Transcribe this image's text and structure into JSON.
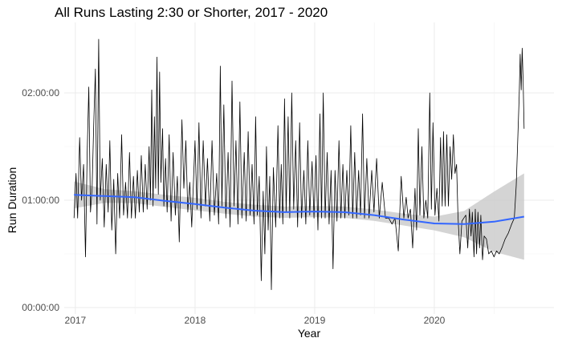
{
  "chart_data": {
    "type": "line",
    "title": "All Runs Lasting 2:30 or Shorter, 2017 - 2020",
    "xlabel": "Year",
    "ylabel": "Run Duration",
    "x_ticks": [
      "2017",
      "2018",
      "2019",
      "2020"
    ],
    "y_ticks": [
      "00:00:00",
      "01:00:00",
      "02:00:00"
    ],
    "xlim": [
      "2016-11-28",
      "2020-12-31"
    ],
    "ylim_seconds": [
      0,
      9000
    ],
    "grid": true,
    "series": [
      {
        "type": "line",
        "color": "#000000",
        "points": [
          [
            "2016-12-28",
            3000
          ],
          [
            "2017-01-03",
            4500
          ],
          [
            "2017-01-08",
            3000
          ],
          [
            "2017-01-14",
            5700
          ],
          [
            "2017-01-20",
            3600
          ],
          [
            "2017-01-26",
            4800
          ],
          [
            "2017-02-01",
            1700
          ],
          [
            "2017-02-06",
            5200
          ],
          [
            "2017-02-11",
            7400
          ],
          [
            "2017-02-16",
            3200
          ],
          [
            "2017-02-21",
            4000
          ],
          [
            "2017-02-26",
            6100
          ],
          [
            "2017-03-03",
            8000
          ],
          [
            "2017-03-08",
            2800
          ],
          [
            "2017-03-13",
            9000
          ],
          [
            "2017-03-18",
            3600
          ],
          [
            "2017-03-24",
            5000
          ],
          [
            "2017-03-30",
            2700
          ],
          [
            "2017-04-05",
            4800
          ],
          [
            "2017-04-11",
            3200
          ],
          [
            "2017-04-16",
            5600
          ],
          [
            "2017-04-22",
            2600
          ],
          [
            "2017-04-28",
            4300
          ],
          [
            "2017-05-04",
            1800
          ],
          [
            "2017-05-10",
            4500
          ],
          [
            "2017-05-16",
            3000
          ],
          [
            "2017-05-22",
            5800
          ],
          [
            "2017-05-28",
            3100
          ],
          [
            "2017-06-03",
            4200
          ],
          [
            "2017-06-09",
            3000
          ],
          [
            "2017-06-15",
            5200
          ],
          [
            "2017-06-21",
            3000
          ],
          [
            "2017-06-27",
            4400
          ],
          [
            "2017-07-03",
            3000
          ],
          [
            "2017-07-09",
            4600
          ],
          [
            "2017-07-15",
            3200
          ],
          [
            "2017-07-21",
            5100
          ],
          [
            "2017-07-27",
            3200
          ],
          [
            "2017-08-02",
            4800
          ],
          [
            "2017-08-08",
            3300
          ],
          [
            "2017-08-14",
            5400
          ],
          [
            "2017-08-18",
            3600
          ],
          [
            "2017-08-22",
            7300
          ],
          [
            "2017-08-26",
            3400
          ],
          [
            "2017-08-30",
            6400
          ],
          [
            "2017-09-03",
            4000
          ],
          [
            "2017-09-07",
            8400
          ],
          [
            "2017-09-11",
            3800
          ],
          [
            "2017-09-15",
            7900
          ],
          [
            "2017-09-19",
            4200
          ],
          [
            "2017-09-24",
            6000
          ],
          [
            "2017-09-28",
            3400
          ],
          [
            "2017-10-03",
            5000
          ],
          [
            "2017-10-08",
            3200
          ],
          [
            "2017-10-14",
            5800
          ],
          [
            "2017-10-20",
            2900
          ],
          [
            "2017-10-26",
            5200
          ],
          [
            "2017-11-02",
            3100
          ],
          [
            "2017-11-08",
            4400
          ],
          [
            "2017-11-14",
            2200
          ],
          [
            "2017-11-22",
            6300
          ],
          [
            "2017-11-28",
            4000
          ],
          [
            "2017-12-04",
            5600
          ],
          [
            "2017-12-10",
            3200
          ],
          [
            "2017-12-16",
            4200
          ],
          [
            "2017-12-22",
            2700
          ],
          [
            "2018-01-01",
            5600
          ],
          [
            "2018-01-07",
            3300
          ],
          [
            "2018-01-13",
            6200
          ],
          [
            "2018-01-19",
            3000
          ],
          [
            "2018-01-26",
            5600
          ],
          [
            "2018-02-02",
            3400
          ],
          [
            "2018-02-08",
            5000
          ],
          [
            "2018-02-15",
            2900
          ],
          [
            "2018-02-22",
            5600
          ],
          [
            "2018-03-01",
            3100
          ],
          [
            "2018-03-08",
            4500
          ],
          [
            "2018-03-14",
            2800
          ],
          [
            "2018-03-19",
            8100
          ],
          [
            "2018-03-24",
            3400
          ],
          [
            "2018-03-30",
            6800
          ],
          [
            "2018-04-05",
            3000
          ],
          [
            "2018-04-12",
            5200
          ],
          [
            "2018-04-18",
            2700
          ],
          [
            "2018-04-24",
            7600
          ],
          [
            "2018-04-30",
            3400
          ],
          [
            "2018-05-06",
            5600
          ],
          [
            "2018-05-12",
            2800
          ],
          [
            "2018-05-18",
            6900
          ],
          [
            "2018-05-24",
            3000
          ],
          [
            "2018-05-31",
            5200
          ],
          [
            "2018-06-06",
            2900
          ],
          [
            "2018-06-12",
            5900
          ],
          [
            "2018-06-18",
            3100
          ],
          [
            "2018-06-24",
            4800
          ],
          [
            "2018-06-30",
            2800
          ],
          [
            "2018-07-05",
            6400
          ],
          [
            "2018-07-10",
            3100
          ],
          [
            "2018-07-16",
            4400
          ],
          [
            "2018-07-22",
            900
          ],
          [
            "2018-07-28",
            3900
          ],
          [
            "2018-08-02",
            1800
          ],
          [
            "2018-08-07",
            5400
          ],
          [
            "2018-08-12",
            2600
          ],
          [
            "2018-08-17",
            4400
          ],
          [
            "2018-08-22",
            600
          ],
          [
            "2018-08-28",
            4700
          ],
          [
            "2018-09-04",
            2700
          ],
          [
            "2018-09-11",
            6100
          ],
          [
            "2018-09-16",
            3000
          ],
          [
            "2018-09-21",
            4800
          ],
          [
            "2018-09-26",
            2800
          ],
          [
            "2018-10-01",
            7000
          ],
          [
            "2018-10-06",
            3200
          ],
          [
            "2018-10-12",
            6400
          ],
          [
            "2018-10-17",
            3000
          ],
          [
            "2018-10-23",
            7200
          ],
          [
            "2018-10-29",
            3300
          ],
          [
            "2018-11-04",
            5600
          ],
          [
            "2018-11-10",
            2700
          ],
          [
            "2018-11-16",
            6200
          ],
          [
            "2018-11-22",
            3000
          ],
          [
            "2018-11-29",
            4600
          ],
          [
            "2018-12-05",
            2800
          ],
          [
            "2018-12-11",
            5600
          ],
          [
            "2018-12-17",
            3100
          ],
          [
            "2018-12-24",
            4900
          ],
          [
            "2018-12-30",
            3000
          ],
          [
            "2019-01-05",
            5100
          ],
          [
            "2019-01-11",
            2600
          ],
          [
            "2019-01-17",
            6500
          ],
          [
            "2019-01-22",
            3000
          ],
          [
            "2019-01-27",
            7200
          ],
          [
            "2019-02-02",
            3000
          ],
          [
            "2019-02-08",
            5200
          ],
          [
            "2019-02-14",
            2800
          ],
          [
            "2019-02-20",
            4600
          ],
          [
            "2019-02-26",
            1300
          ],
          [
            "2019-03-04",
            4600
          ],
          [
            "2019-03-10",
            2900
          ],
          [
            "2019-03-16",
            5600
          ],
          [
            "2019-03-22",
            3000
          ],
          [
            "2019-03-28",
            4800
          ],
          [
            "2019-04-03",
            3000
          ],
          [
            "2019-04-09",
            4600
          ],
          [
            "2019-04-15",
            3100
          ],
          [
            "2019-04-21",
            6100
          ],
          [
            "2019-04-27",
            3000
          ],
          [
            "2019-05-03",
            5200
          ],
          [
            "2019-05-09",
            3000
          ],
          [
            "2019-05-15",
            4600
          ],
          [
            "2019-05-21",
            3100
          ],
          [
            "2019-05-27",
            6500
          ],
          [
            "2019-06-02",
            3000
          ],
          [
            "2019-06-09",
            5000
          ],
          [
            "2019-06-16",
            3000
          ],
          [
            "2019-06-24",
            4600
          ],
          [
            "2019-07-01",
            3200
          ],
          [
            "2019-07-09",
            5000
          ],
          [
            "2019-07-17",
            3000
          ],
          [
            "2019-07-26",
            4200
          ],
          [
            "2019-08-05",
            3000
          ],
          [
            "2019-08-15",
            3000
          ],
          [
            "2019-08-25",
            2800
          ],
          [
            "2019-09-03",
            3000
          ],
          [
            "2019-09-13",
            1900
          ],
          [
            "2019-09-22",
            4400
          ],
          [
            "2019-09-30",
            3000
          ],
          [
            "2019-10-07",
            3700
          ],
          [
            "2019-10-13",
            3000
          ],
          [
            "2019-10-20",
            3300
          ],
          [
            "2019-10-27",
            2000
          ],
          [
            "2019-11-03",
            4000
          ],
          [
            "2019-11-08",
            2600
          ],
          [
            "2019-11-13",
            6000
          ],
          [
            "2019-11-18",
            3100
          ],
          [
            "2019-11-24",
            5400
          ],
          [
            "2019-11-30",
            3000
          ],
          [
            "2019-12-06",
            3600
          ],
          [
            "2019-12-12",
            3000
          ],
          [
            "2019-12-18",
            7200
          ],
          [
            "2019-12-23",
            3300
          ],
          [
            "2019-12-28",
            6200
          ],
          [
            "2020-01-03",
            3100
          ],
          [
            "2020-01-09",
            4000
          ],
          [
            "2020-01-15",
            2900
          ],
          [
            "2020-01-20",
            5700
          ],
          [
            "2020-01-25",
            3400
          ],
          [
            "2020-01-29",
            5900
          ],
          [
            "2020-02-03",
            3400
          ],
          [
            "2020-02-08",
            5800
          ],
          [
            "2020-02-13",
            3400
          ],
          [
            "2020-02-18",
            5400
          ],
          [
            "2020-02-23",
            4300
          ],
          [
            "2020-02-28",
            5800
          ],
          [
            "2020-03-04",
            4500
          ],
          [
            "2020-03-09",
            4800
          ],
          [
            "2020-03-13",
            3100
          ],
          [
            "2020-03-19",
            1800
          ],
          [
            "2020-03-25",
            2900
          ],
          [
            "2020-03-31",
            3000
          ],
          [
            "2020-04-06",
            3100
          ],
          [
            "2020-04-12",
            2000
          ],
          [
            "2020-04-17",
            3300
          ],
          [
            "2020-04-22",
            2400
          ],
          [
            "2020-04-26",
            3200
          ],
          [
            "2020-05-01",
            1700
          ],
          [
            "2020-05-05",
            3300
          ],
          [
            "2020-05-09",
            1800
          ],
          [
            "2020-05-13",
            3200
          ],
          [
            "2020-05-18",
            2000
          ],
          [
            "2020-05-22",
            3100
          ],
          [
            "2020-05-27",
            1600
          ],
          [
            "2020-06-01",
            2400
          ],
          [
            "2020-06-08",
            2300
          ],
          [
            "2020-06-15",
            1800
          ],
          [
            "2020-06-23",
            1900
          ],
          [
            "2020-07-01",
            1700
          ],
          [
            "2020-07-09",
            1900
          ],
          [
            "2020-07-17",
            1800
          ],
          [
            "2020-07-25",
            2000
          ],
          [
            "2020-08-04",
            2300
          ],
          [
            "2020-08-14",
            2500
          ],
          [
            "2020-08-24",
            2800
          ],
          [
            "2020-09-01",
            3000
          ],
          [
            "2020-09-07",
            4100
          ],
          [
            "2020-09-12",
            5800
          ],
          [
            "2020-09-16",
            7100
          ],
          [
            "2020-09-19",
            8500
          ],
          [
            "2020-09-22",
            7300
          ],
          [
            "2020-09-25",
            8700
          ],
          [
            "2020-09-28",
            7600
          ],
          [
            "2020-10-01",
            6000
          ]
        ]
      },
      {
        "type": "smooth",
        "color": "#3366ff",
        "band_color": "#cccccc",
        "points": [
          [
            "2016-12-28",
            3780
          ],
          [
            "2017-04-01",
            3740
          ],
          [
            "2017-07-01",
            3700
          ],
          [
            "2017-10-01",
            3580
          ],
          [
            "2018-01-01",
            3470
          ],
          [
            "2018-04-01",
            3350
          ],
          [
            "2018-07-01",
            3250
          ],
          [
            "2018-10-01",
            3200
          ],
          [
            "2019-01-01",
            3220
          ],
          [
            "2019-04-01",
            3200
          ],
          [
            "2019-07-01",
            3100
          ],
          [
            "2019-10-01",
            2950
          ],
          [
            "2020-01-01",
            2820
          ],
          [
            "2020-04-01",
            2800
          ],
          [
            "2020-07-01",
            2880
          ],
          [
            "2020-10-01",
            3050
          ]
        ],
        "band_half_width": [
          450,
          230,
          200,
          200,
          210,
          200,
          200,
          190,
          190,
          190,
          190,
          200,
          230,
          440,
          1010,
          1450
        ]
      }
    ]
  }
}
